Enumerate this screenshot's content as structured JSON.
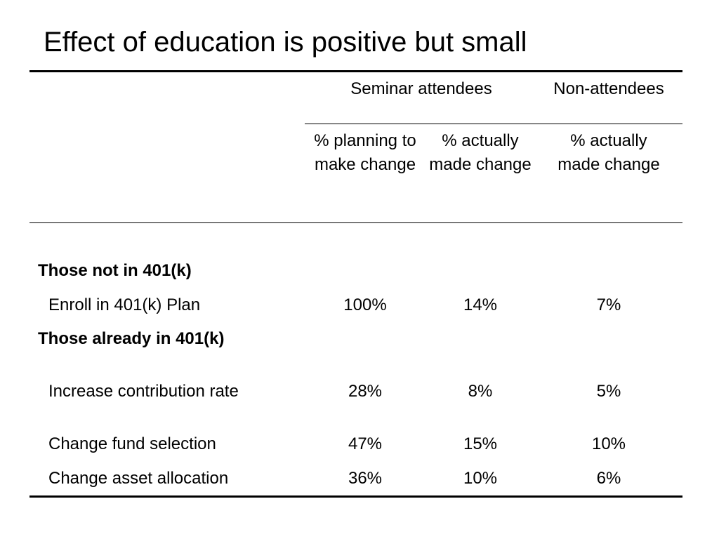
{
  "slide": {
    "title": "Effect of education is positive but small"
  },
  "table": {
    "group_headers": {
      "seminar": "Seminar attendees",
      "non": "Non-attendees"
    },
    "column_headers": {
      "planning": "% planning to make change",
      "actual_seminar": "% actually made change",
      "actual_non": "% actually made change"
    },
    "sections": [
      {
        "label": "Those not in 401(k)",
        "rows": [
          {
            "label": "Enroll in 401(k) Plan",
            "planning": "100%",
            "actual_seminar": "14%",
            "actual_non": "7%"
          }
        ]
      },
      {
        "label": "Those already in 401(k)",
        "rows": [
          {
            "label": "Increase contribution rate",
            "planning": "28%",
            "actual_seminar": "8%",
            "actual_non": "5%"
          },
          {
            "label": "Change fund selection",
            "planning": "47%",
            "actual_seminar": "15%",
            "actual_non": "10%"
          },
          {
            "label": "Change asset allocation",
            "planning": "36%",
            "actual_seminar": "10%",
            "actual_non": "6%"
          }
        ]
      }
    ]
  }
}
